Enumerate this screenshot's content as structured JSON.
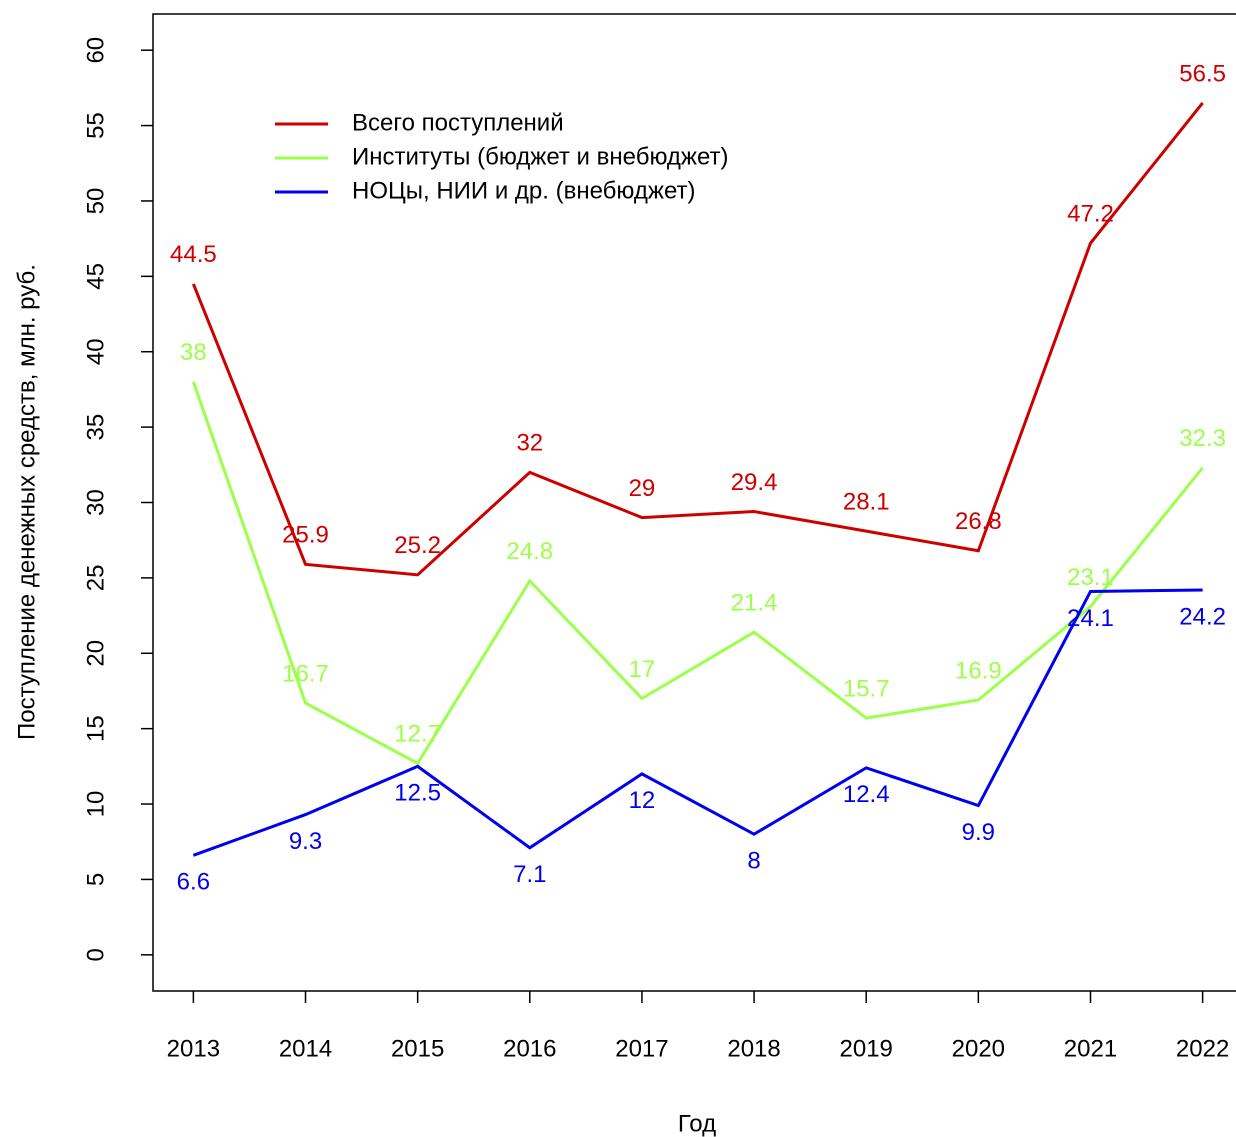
{
  "chart_data": {
    "type": "line",
    "x_label": "Год",
    "y_label": "Поступление денежных средств, млн. руб.",
    "x": [
      2013,
      2014,
      2015,
      2016,
      2017,
      2018,
      2019,
      2020,
      2021,
      2022
    ],
    "xlim": [
      2012.64,
      2022.36
    ],
    "xticks": [
      2013,
      2014,
      2015,
      2016,
      2017,
      2018,
      2019,
      2020,
      2021,
      2022
    ],
    "ylim": [
      -2.4,
      62.4
    ],
    "yticks": [
      0,
      5,
      10,
      15,
      20,
      25,
      30,
      35,
      40,
      45,
      50,
      55,
      60
    ],
    "series": [
      {
        "name": "Всего поступлений",
        "color": "#cd0000",
        "values": [
          44.5,
          25.9,
          25.2,
          32,
          29,
          29.4,
          28.1,
          26.8,
          47.2,
          56.5
        ]
      },
      {
        "name": "Институты (бюджет и внебюджет)",
        "color": "#9cff4a",
        "values": [
          38,
          16.7,
          12.7,
          24.8,
          17,
          21.4,
          15.7,
          16.9,
          23.1,
          32.3
        ]
      },
      {
        "name": "НОЦы, НИИ и др. (внебюджет)",
        "color": "#0000ee",
        "values": [
          6.6,
          9.3,
          12.5,
          7.1,
          12,
          8,
          12.4,
          9.9,
          24.1,
          24.2
        ]
      }
    ]
  }
}
